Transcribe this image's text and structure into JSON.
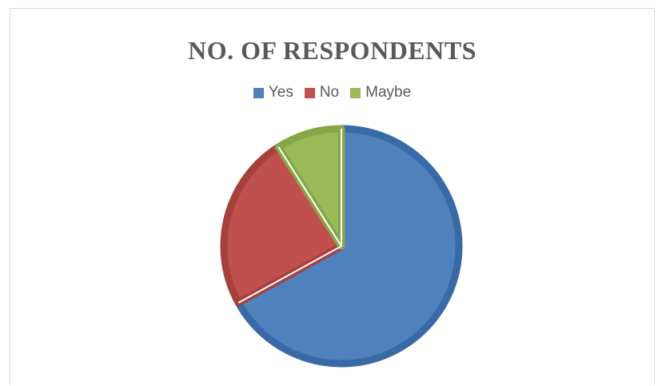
{
  "chart_data": {
    "type": "pie",
    "title": "NO. OF RESPONDENTS",
    "legend_position": "top",
    "slices": [
      {
        "label": "Yes",
        "value": 67,
        "color": "#4F81BD",
        "edge": "#3A6AA6"
      },
      {
        "label": "No",
        "value": 24,
        "color": "#C0504D",
        "edge": "#A7403D"
      },
      {
        "label": "Maybe",
        "value": 9,
        "color": "#9BBB59",
        "edge": "#86A648"
      }
    ]
  }
}
